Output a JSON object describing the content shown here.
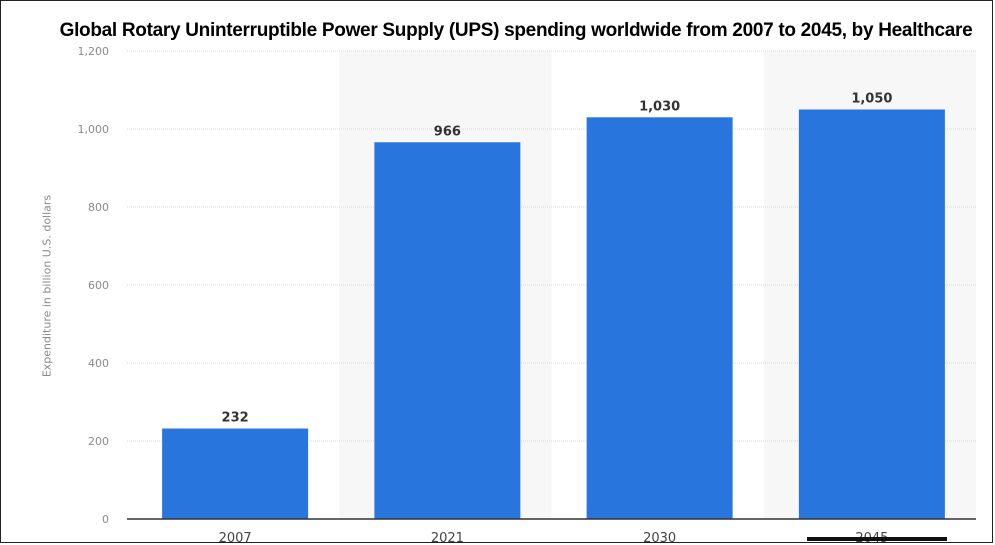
{
  "chart_data": {
    "type": "bar",
    "title": "Global Rotary Uninterruptible Power Supply (UPS) spending worldwide from 2007 to 2045, by Healthcare",
    "categories": [
      "2007",
      "2021",
      "2030",
      "2045"
    ],
    "values": [
      232,
      966,
      1030,
      1050
    ],
    "value_labels": [
      "232",
      "966",
      "1,030",
      "1,050"
    ],
    "ylabel": "Expenditure in billion U.S. dollars",
    "xlabel": "",
    "ylim": [
      0,
      1200
    ],
    "yticks": [
      0,
      200,
      400,
      600,
      800,
      1000,
      1200
    ],
    "ytick_labels": [
      "0",
      "200",
      "400",
      "600",
      "800",
      "1,000",
      "1,200"
    ],
    "grid": true,
    "legend": "none",
    "colors": {
      "bar": "#2876dd",
      "grid": "#d9d9d9",
      "axis": "#333333",
      "tick_text": "#8a8a8a",
      "value_text": "#333333",
      "category_text": "#444444",
      "band": "#f7f7f7"
    }
  }
}
